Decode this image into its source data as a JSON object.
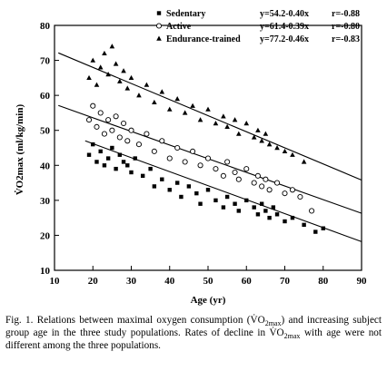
{
  "chart_data": {
    "type": "scatter",
    "title": "",
    "xlabel": "Age (yr)",
    "ylabel_main": "V̇O2max (ml/kg/min)",
    "xlim": [
      10,
      90
    ],
    "ylim": [
      10,
      80
    ],
    "x_ticks": [
      10,
      20,
      30,
      40,
      50,
      60,
      70,
      80,
      90
    ],
    "y_ticks": [
      10,
      20,
      30,
      40,
      50,
      60,
      70,
      80
    ],
    "grid": false,
    "legend_position": "top-right",
    "series": [
      {
        "name": "Sedentary",
        "marker": "filled-square",
        "equation": "y=54.2-0.40x",
        "r": "r=-0.88",
        "line": {
          "intercept": 54.2,
          "slope": -0.4,
          "x_range": [
            18,
            90
          ]
        },
        "points": [
          [
            19,
            43
          ],
          [
            20,
            46
          ],
          [
            21,
            41
          ],
          [
            22,
            44
          ],
          [
            23,
            40
          ],
          [
            24,
            42
          ],
          [
            25,
            45
          ],
          [
            26,
            39
          ],
          [
            27,
            43
          ],
          [
            28,
            41
          ],
          [
            29,
            40
          ],
          [
            30,
            38
          ],
          [
            31,
            42
          ],
          [
            33,
            37
          ],
          [
            35,
            39
          ],
          [
            36,
            34
          ],
          [
            38,
            36
          ],
          [
            40,
            33
          ],
          [
            42,
            35
          ],
          [
            43,
            31
          ],
          [
            45,
            34
          ],
          [
            47,
            32
          ],
          [
            48,
            29
          ],
          [
            50,
            33
          ],
          [
            52,
            30
          ],
          [
            54,
            28
          ],
          [
            55,
            31
          ],
          [
            57,
            29
          ],
          [
            58,
            27
          ],
          [
            60,
            30
          ],
          [
            62,
            28
          ],
          [
            63,
            26
          ],
          [
            64,
            29
          ],
          [
            65,
            27
          ],
          [
            66,
            25
          ],
          [
            67,
            28
          ],
          [
            68,
            26
          ],
          [
            70,
            24
          ],
          [
            72,
            25
          ],
          [
            75,
            23
          ],
          [
            78,
            21
          ],
          [
            80,
            22
          ]
        ]
      },
      {
        "name": "Active",
        "marker": "open-circle",
        "equation": "y=61.4-0.39x",
        "r": "r=-0.80",
        "line": {
          "intercept": 61.4,
          "slope": -0.39,
          "x_range": [
            11,
            90
          ]
        },
        "points": [
          [
            19,
            53
          ],
          [
            20,
            57
          ],
          [
            21,
            51
          ],
          [
            22,
            55
          ],
          [
            23,
            49
          ],
          [
            24,
            53
          ],
          [
            25,
            50
          ],
          [
            26,
            54
          ],
          [
            27,
            48
          ],
          [
            28,
            52
          ],
          [
            29,
            47
          ],
          [
            30,
            50
          ],
          [
            32,
            46
          ],
          [
            34,
            49
          ],
          [
            36,
            44
          ],
          [
            38,
            47
          ],
          [
            40,
            42
          ],
          [
            42,
            45
          ],
          [
            44,
            41
          ],
          [
            46,
            44
          ],
          [
            48,
            40
          ],
          [
            50,
            42
          ],
          [
            52,
            39
          ],
          [
            54,
            37
          ],
          [
            55,
            41
          ],
          [
            57,
            38
          ],
          [
            58,
            36
          ],
          [
            60,
            39
          ],
          [
            62,
            35
          ],
          [
            63,
            37
          ],
          [
            64,
            34
          ],
          [
            65,
            36
          ],
          [
            66,
            33
          ],
          [
            68,
            35
          ],
          [
            70,
            32
          ],
          [
            72,
            33
          ],
          [
            74,
            31
          ],
          [
            77,
            27
          ]
        ]
      },
      {
        "name": "Endurance-trained",
        "marker": "filled-triangle",
        "equation": "y=77.2-0.46x",
        "r": "r=-0.83",
        "line": {
          "intercept": 77.2,
          "slope": -0.46,
          "x_range": [
            11,
            90
          ]
        },
        "points": [
          [
            19,
            65
          ],
          [
            20,
            70
          ],
          [
            21,
            63
          ],
          [
            22,
            68
          ],
          [
            23,
            72
          ],
          [
            24,
            66
          ],
          [
            25,
            74
          ],
          [
            26,
            69
          ],
          [
            27,
            64
          ],
          [
            28,
            67
          ],
          [
            29,
            62
          ],
          [
            30,
            65
          ],
          [
            32,
            60
          ],
          [
            34,
            63
          ],
          [
            36,
            58
          ],
          [
            38,
            61
          ],
          [
            40,
            56
          ],
          [
            42,
            59
          ],
          [
            44,
            55
          ],
          [
            46,
            57
          ],
          [
            48,
            53
          ],
          [
            50,
            56
          ],
          [
            52,
            52
          ],
          [
            54,
            54
          ],
          [
            55,
            51
          ],
          [
            57,
            53
          ],
          [
            58,
            49
          ],
          [
            60,
            52
          ],
          [
            62,
            48
          ],
          [
            63,
            50
          ],
          [
            64,
            47
          ],
          [
            65,
            49
          ],
          [
            66,
            46
          ],
          [
            68,
            45
          ],
          [
            70,
            44
          ],
          [
            72,
            43
          ],
          [
            75,
            41
          ]
        ]
      }
    ]
  },
  "caption": {
    "lead": "Fig. 1.  Relations between maximal oxygen consumption (",
    "v1": "V̇O",
    "s1": "2max",
    "t1": ") and increasing subject group age in the three study populations. Rates of decline in ",
    "v2": "V̇O",
    "s2": "2max",
    "t2": " with age were not different among the three populations."
  }
}
